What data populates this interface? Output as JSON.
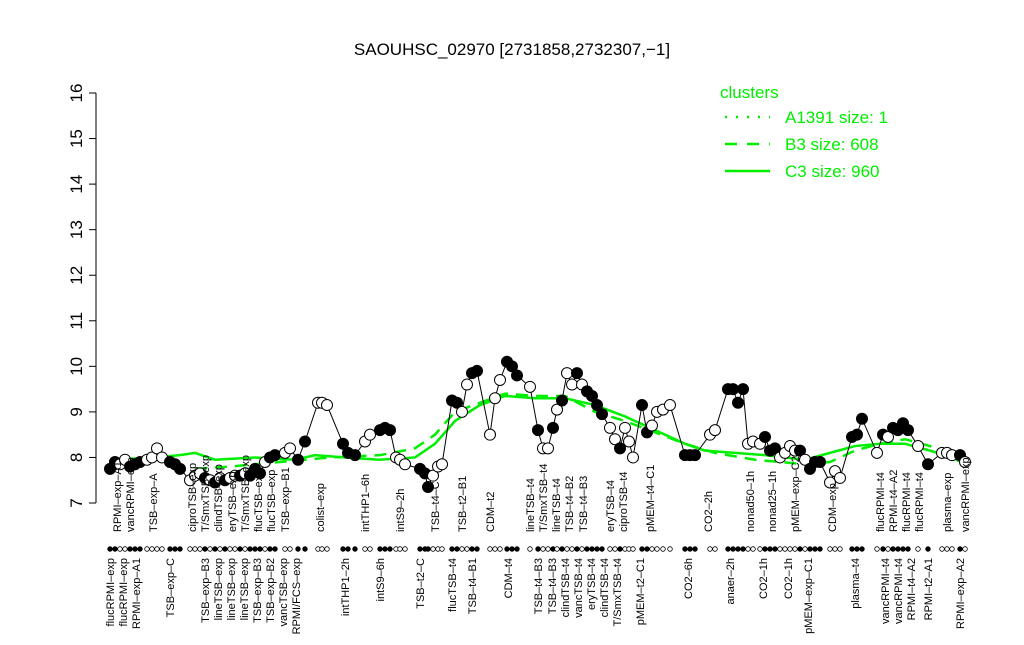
{
  "chart_data": {
    "type": "line",
    "title": "SAOUHSC_02970 [2731858,2732307,−1]",
    "xlabel": "",
    "ylabel": "",
    "ylim": [
      7,
      16
    ],
    "yticks": [
      7,
      8,
      9,
      10,
      11,
      12,
      13,
      14,
      15,
      16
    ],
    "xlim": [
      0,
      173
    ],
    "grid": false,
    "point_fill_colors": {
      "filled": "#000000",
      "open": "#ffffff"
    },
    "points": [
      [
        1,
        7.75,
        1
      ],
      [
        2,
        7.9,
        1
      ],
      [
        3,
        7.85,
        0
      ],
      [
        4,
        7.95,
        0
      ],
      [
        5,
        7.8,
        1
      ],
      [
        6,
        7.85,
        1
      ],
      [
        7,
        7.9,
        1
      ],
      [
        8.4,
        7.95,
        0
      ],
      [
        9.4,
        8.0,
        0
      ],
      [
        10.4,
        8.2,
        0
      ],
      [
        11.4,
        8.0,
        0
      ],
      [
        13,
        7.9,
        1
      ],
      [
        14,
        7.85,
        1
      ],
      [
        15,
        7.75,
        1
      ],
      [
        17,
        7.5,
        0
      ],
      [
        18,
        7.6,
        0
      ],
      [
        19,
        7.65,
        0
      ],
      [
        20,
        7.55,
        1
      ],
      [
        21,
        7.5,
        0
      ],
      [
        22,
        7.45,
        1
      ],
      [
        23,
        7.55,
        0
      ],
      [
        24,
        7.5,
        1
      ],
      [
        25,
        7.55,
        0
      ],
      [
        26,
        7.6,
        0
      ],
      [
        27,
        7.6,
        1
      ],
      [
        28,
        7.65,
        0
      ],
      [
        29,
        7.6,
        1
      ],
      [
        30,
        7.75,
        1
      ],
      [
        31,
        7.65,
        1
      ],
      [
        32,
        7.9,
        0
      ],
      [
        33,
        8.0,
        1
      ],
      [
        34,
        8.05,
        1
      ],
      [
        36,
        8.1,
        0
      ],
      [
        37,
        8.2,
        0
      ],
      [
        38.6,
        7.95,
        1
      ],
      [
        40,
        8.35,
        1
      ],
      [
        42.6,
        9.2,
        0
      ],
      [
        43.4,
        9.2,
        0
      ],
      [
        44.4,
        9.15,
        0
      ],
      [
        47.6,
        8.3,
        1
      ],
      [
        48.6,
        8.1,
        1
      ],
      [
        50,
        8.05,
        1
      ],
      [
        52,
        8.35,
        0
      ],
      [
        53,
        8.5,
        0
      ],
      [
        55,
        8.6,
        1
      ],
      [
        56,
        8.65,
        1
      ],
      [
        57,
        8.6,
        1
      ],
      [
        58.2,
        8.0,
        0
      ],
      [
        59,
        7.95,
        0
      ],
      [
        60,
        7.85,
        0
      ],
      [
        63,
        7.75,
        1
      ],
      [
        64,
        7.65,
        1
      ],
      [
        64.6,
        7.35,
        1
      ],
      [
        65.6,
        7.6,
        0
      ],
      [
        66.6,
        7.8,
        0
      ],
      [
        67.4,
        7.85,
        0
      ],
      [
        69.4,
        9.25,
        1
      ],
      [
        70.4,
        9.2,
        1
      ],
      [
        71.4,
        9.0,
        0
      ],
      [
        72.4,
        9.6,
        0
      ],
      [
        73.4,
        9.85,
        1
      ],
      [
        74.4,
        9.9,
        1
      ],
      [
        77,
        8.5,
        0
      ],
      [
        78,
        9.3,
        0
      ],
      [
        79,
        9.7,
        0
      ],
      [
        80.4,
        10.1,
        1
      ],
      [
        81.4,
        10.0,
        1
      ],
      [
        82.4,
        9.8,
        1
      ],
      [
        85,
        9.55,
        0
      ],
      [
        86.6,
        8.6,
        1
      ],
      [
        87.6,
        8.2,
        0
      ],
      [
        88.6,
        8.2,
        0
      ],
      [
        89.6,
        8.65,
        1
      ],
      [
        90.4,
        9.05,
        0
      ],
      [
        91.4,
        9.25,
        1
      ],
      [
        92.4,
        9.85,
        0
      ],
      [
        93.4,
        9.6,
        0
      ],
      [
        94.4,
        9.85,
        1
      ],
      [
        95.4,
        9.6,
        0
      ],
      [
        96.4,
        9.45,
        1
      ],
      [
        97.4,
        9.35,
        1
      ],
      [
        98.4,
        9.15,
        1
      ],
      [
        99.4,
        8.95,
        1
      ],
      [
        101,
        8.65,
        0
      ],
      [
        102,
        8.4,
        0
      ],
      [
        103,
        8.2,
        1
      ],
      [
        104,
        8.65,
        0
      ],
      [
        104.8,
        8.35,
        0
      ],
      [
        105.6,
        8.0,
        0
      ],
      [
        107.4,
        9.15,
        1
      ],
      [
        108.4,
        8.55,
        1
      ],
      [
        109.4,
        8.7,
        0
      ],
      [
        110.4,
        9.0,
        0
      ],
      [
        111.6,
        9.05,
        0
      ],
      [
        113,
        9.15,
        0
      ],
      [
        116,
        8.05,
        1
      ],
      [
        117,
        8.05,
        1
      ],
      [
        118,
        8.05,
        1
      ],
      [
        121,
        8.5,
        0
      ],
      [
        122,
        8.6,
        0
      ],
      [
        124.6,
        9.5,
        1
      ],
      [
        125.6,
        9.5,
        1
      ],
      [
        126.6,
        9.2,
        1
      ],
      [
        127.6,
        9.5,
        1
      ],
      [
        128.6,
        8.3,
        0
      ],
      [
        129.6,
        8.35,
        0
      ],
      [
        131,
        8.3,
        0
      ],
      [
        132,
        8.45,
        1
      ],
      [
        133,
        8.15,
        1
      ],
      [
        134,
        8.2,
        1
      ],
      [
        135,
        8.0,
        0
      ],
      [
        136,
        8.1,
        0
      ],
      [
        137,
        8.25,
        0
      ],
      [
        138,
        8.15,
        0
      ],
      [
        139,
        8.15,
        1
      ],
      [
        140,
        7.95,
        0
      ],
      [
        141,
        7.75,
        1
      ],
      [
        142,
        7.9,
        1
      ],
      [
        143,
        7.9,
        1
      ],
      [
        145,
        7.45,
        0
      ],
      [
        146,
        7.7,
        0
      ],
      [
        147,
        7.55,
        0
      ],
      [
        149.4,
        8.45,
        1
      ],
      [
        150.4,
        8.5,
        1
      ],
      [
        151.4,
        8.85,
        1
      ],
      [
        154.4,
        8.1,
        0
      ],
      [
        155.6,
        8.5,
        1
      ],
      [
        156.6,
        8.45,
        0
      ],
      [
        157.6,
        8.65,
        1
      ],
      [
        158.6,
        8.6,
        1
      ],
      [
        159.6,
        8.75,
        1
      ],
      [
        160.6,
        8.6,
        1
      ],
      [
        162.6,
        8.25,
        0
      ],
      [
        164.6,
        7.85,
        1
      ],
      [
        167.4,
        8.1,
        0
      ],
      [
        168.4,
        8.1,
        0
      ],
      [
        169.4,
        8.05,
        0
      ],
      [
        171,
        8.05,
        1
      ],
      [
        172,
        7.9,
        0
      ]
    ],
    "series": [
      {
        "name": "C3 size: 960",
        "style": "solid",
        "color": "#00ee00",
        "points": [
          [
            1,
            7.95
          ],
          [
            10,
            8.0
          ],
          [
            15,
            8.05
          ],
          [
            18,
            8.1
          ],
          [
            22,
            7.95
          ],
          [
            30,
            8.0
          ],
          [
            38,
            7.95
          ],
          [
            42,
            8.05
          ],
          [
            48,
            8.0
          ],
          [
            55,
            7.95
          ],
          [
            62,
            8.0
          ],
          [
            66,
            8.3
          ],
          [
            70,
            8.8
          ],
          [
            75,
            9.15
          ],
          [
            80,
            9.35
          ],
          [
            86,
            9.3
          ],
          [
            92,
            9.3
          ],
          [
            98,
            9.15
          ],
          [
            104,
            8.9
          ],
          [
            110,
            8.6
          ],
          [
            116,
            8.3
          ],
          [
            120,
            8.15
          ],
          [
            126,
            8.1
          ],
          [
            132,
            8.05
          ],
          [
            140,
            7.95
          ],
          [
            145,
            8.1
          ],
          [
            150,
            8.25
          ],
          [
            155,
            8.3
          ],
          [
            160,
            8.3
          ],
          [
            165,
            8.15
          ],
          [
            172,
            7.9
          ]
        ]
      },
      {
        "name": "B3 size: 608",
        "style": "dashed",
        "color": "#00ee00",
        "points": [
          [
            18,
            7.75
          ],
          [
            25,
            7.8
          ],
          [
            35,
            7.9
          ],
          [
            45,
            8.0
          ],
          [
            55,
            8.05
          ],
          [
            62,
            8.2
          ],
          [
            66,
            8.5
          ],
          [
            70,
            9.0
          ],
          [
            75,
            9.2
          ],
          [
            80,
            9.4
          ],
          [
            86,
            9.35
          ],
          [
            92,
            9.35
          ],
          [
            98,
            9.0
          ],
          [
            104,
            8.8
          ],
          [
            110,
            8.55
          ],
          [
            116,
            8.3
          ],
          [
            122,
            8.1
          ],
          [
            130,
            7.95
          ],
          [
            140,
            7.85
          ],
          [
            145,
            7.9
          ],
          [
            150,
            8.15
          ],
          [
            155,
            8.3
          ],
          [
            160,
            8.4
          ],
          [
            165,
            8.25
          ],
          [
            172,
            7.85
          ]
        ]
      },
      {
        "name": "A1391 size: 1",
        "style": "dotted",
        "color": "#00ee00",
        "points": []
      }
    ],
    "legend": {
      "title": "clusters",
      "position": "top-right",
      "color": "#00ee00",
      "entries": [
        {
          "label": "A1391 size: 1",
          "style": "dotted"
        },
        {
          "label": "B3 size: 608",
          "style": "dashed"
        },
        {
          "label": "C3 size: 960",
          "style": "solid"
        }
      ]
    },
    "top_labels": [
      [
        2.4,
        "RPMI–exp–A1"
      ],
      [
        4,
        "vancRPMI–exp"
      ],
      [
        9.6,
        "TSB–exp–A"
      ],
      [
        17.4,
        "ciproTSB–exp"
      ],
      [
        20,
        "T/SmxTSB–exp"
      ],
      [
        22.6,
        "clindTSB–exp"
      ],
      [
        25.4,
        "eryTSB–exp"
      ],
      [
        28,
        "T/SmxTSB–exp"
      ],
      [
        29.8,
        "flucTSB–exp"
      ],
      [
        32,
        "flucTSB–exp"
      ],
      [
        36,
        "TSB–exp–B1"
      ],
      [
        43,
        "colist–exp"
      ],
      [
        52,
        "intTHP1–6h"
      ],
      [
        59,
        "intS9–2h"
      ],
      [
        66,
        "TSB–t4–C"
      ],
      [
        71.4,
        "TSB–t2–B1"
      ],
      [
        77,
        "CDM–t2"
      ],
      [
        85,
        "lineTSB–t4"
      ],
      [
        87.6,
        "T/SmxTSB–t4"
      ],
      [
        90,
        "lineTSB–t4"
      ],
      [
        92.4,
        "TSB–t4–B2"
      ],
      [
        95.6,
        "TSB–t4–B3"
      ],
      [
        101,
        "eryTSB–t4"
      ],
      [
        103.4,
        "ciproTSB–t4"
      ],
      [
        109,
        "pMEM–t4–C1"
      ],
      [
        120.6,
        "CO2–2h"
      ],
      [
        129,
        "nonad50–1h"
      ],
      [
        133.4,
        "nonad25–1h"
      ],
      [
        138,
        "pMEM–exp–C2"
      ],
      [
        145.4,
        "CDM–exp"
      ],
      [
        155,
        "flucRPMI–t4"
      ],
      [
        156,
        "RPMI–t4–A2"
      ],
      [
        159.6,
        "flucRPMI–t4"
      ],
      [
        162.6,
        "flucRPMI–t4"
      ],
      [
        168.4,
        "plasma–exp"
      ],
      [
        172,
        "vancRPMI–exp"
      ]
    ],
    "bottom_labels": [
      [
        1,
        "flucRPMI–exp"
      ],
      [
        3.4,
        "flucRPMI–exp"
      ],
      [
        6,
        "RPMI–exp–A1"
      ],
      [
        13,
        "TSB–exp–C"
      ],
      [
        20,
        "TSB–exp–B3"
      ],
      [
        22,
        "lineTSB–exp"
      ],
      [
        24.6,
        "lineTSB–exp"
      ],
      [
        27,
        "lineTSB–exp"
      ],
      [
        28,
        "TSB–exp–B3"
      ],
      [
        30.6,
        "TSB–exp–B2"
      ],
      [
        33,
        "vancTSB–exp"
      ],
      [
        38.2,
        "RPMI/FCS–exp"
      ],
      [
        48,
        "intTHP1–2h"
      ],
      [
        55,
        "intS9–6h"
      ],
      [
        63,
        "TSB–t2–C"
      ],
      [
        69.4,
        "flucTSB–t4"
      ],
      [
        73.4,
        "TSB–t4–B1"
      ],
      [
        80.6,
        "CDM–t4"
      ],
      [
        86.6,
        "TSB–t4–B3"
      ],
      [
        89.4,
        "TSB–t4–B3"
      ],
      [
        92,
        "clindTSB–t4"
      ],
      [
        94.4,
        "vancTSB–t4"
      ],
      [
        97,
        "eryTSB–t4"
      ],
      [
        99.6,
        "clindTSB–t4"
      ],
      [
        102,
        "T/SmxTSB–t4"
      ],
      [
        107,
        "pMEM–t2–C1"
      ],
      [
        116.6,
        "CO2–6h"
      ],
      [
        125,
        "anaer–2h"
      ],
      [
        131.6,
        "CO2–1h"
      ],
      [
        136.6,
        "CO2–1h"
      ],
      [
        140.6,
        "pMEM–exp–C1"
      ],
      [
        150,
        "plasma–t4"
      ],
      [
        156,
        "vancRPMI–t4"
      ],
      [
        157.6,
        "vancRPMI–t4"
      ],
      [
        159.6,
        "RPMI–t4–A2"
      ],
      [
        164.6,
        "RPMI–t2–A1"
      ],
      [
        171,
        "RPMI–exp–A2"
      ]
    ]
  }
}
